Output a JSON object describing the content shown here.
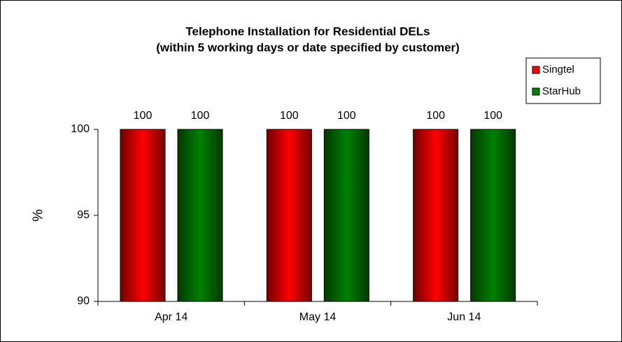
{
  "chart_data": {
    "type": "bar",
    "title": "Telephone Installation for Residential DELs",
    "subtitle": "(within 5 working days or date specified by customer)",
    "y_label": "%",
    "categories": [
      "Apr 14",
      "May 14",
      "Jun 14"
    ],
    "series": [
      {
        "name": "Singtel",
        "color": "#ff0000",
        "values": [
          100,
          100,
          100
        ]
      },
      {
        "name": "StarHub",
        "color": "#008000",
        "values": [
          100,
          100,
          100
        ]
      }
    ],
    "ylim": [
      90,
      100
    ],
    "yticks": [
      90,
      95,
      100
    ],
    "legend": "top-right"
  }
}
